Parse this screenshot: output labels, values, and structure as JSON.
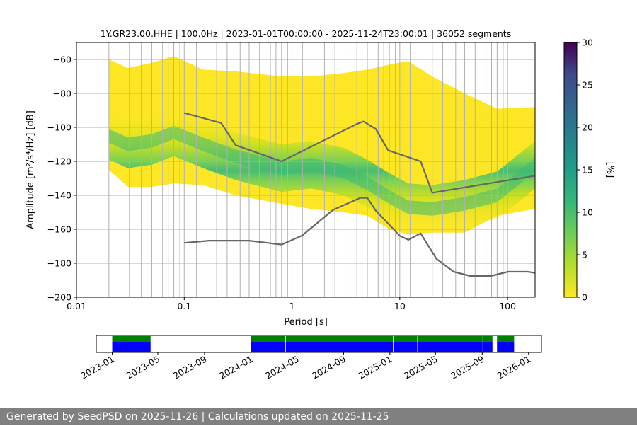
{
  "footer_text": "Generated by SeedPSD on 2025-11-26 | Calculations updated on 2025-11-25",
  "chart_data": [
    {
      "type": "heatmap",
      "title": "1Y.GR23.00.HHE | 100.0Hz | 2023-01-01T00:00:00 - 2025-11-24T23:00:01 | 36052 segments",
      "xlabel": "Period [s]",
      "ylabel": "Amplitude [m²/s⁴/Hz] [dB]",
      "x_scale": "log",
      "xlim": [
        0.01,
        180
      ],
      "ylim": [
        -200,
        -50
      ],
      "x_ticks": [
        0.01,
        0.1,
        1,
        10,
        100
      ],
      "x_tick_labels": [
        "0.01",
        "0.1",
        "1",
        "10",
        "100"
      ],
      "y_ticks": [
        -200,
        -180,
        -160,
        -140,
        -120,
        -100,
        -80,
        -60
      ],
      "y_tick_labels": [
        "−200",
        "−180",
        "−160",
        "−140",
        "−120",
        "−100",
        "−80",
        "−60"
      ],
      "grid": true,
      "colormap": "viridis",
      "colorbar": {
        "label": "[%]",
        "range": [
          0,
          30
        ],
        "ticks": [
          0,
          5,
          10,
          15,
          20,
          25,
          30
        ],
        "tick_labels": [
          "0",
          "5",
          "10",
          "15",
          "20",
          "25",
          "30"
        ]
      },
      "density_band": {
        "period": [
          0.02,
          0.03,
          0.05,
          0.08,
          0.15,
          0.3,
          0.8,
          1.5,
          3,
          5,
          8,
          12,
          20,
          40,
          80,
          180
        ],
        "mode_db": [
          -105,
          -110,
          -108,
          -103,
          -110,
          -117,
          -124,
          -122,
          -126,
          -133,
          -141,
          -147,
          -148,
          -145,
          -140,
          -122
        ],
        "upper_db": [
          -60,
          -65,
          -62,
          -58,
          -66,
          -67,
          -70,
          -70,
          -68,
          -66,
          -63,
          -61,
          -70,
          -80,
          -89,
          -88
        ],
        "lower_db": [
          -125,
          -135,
          -135,
          -133,
          -134,
          -140,
          -145,
          -148,
          -150,
          -152,
          -160,
          -163,
          -162,
          -162,
          -152,
          -148
        ]
      },
      "series": [
        {
          "x": [
            0.1,
            0.22,
            0.3,
            0.8,
            4,
            4.6,
            6,
            7.8,
            15.6,
            20,
            180
          ],
          "y": [
            -91.5,
            -97.4,
            -110.5,
            -120,
            -98,
            -96.5,
            -101,
            -113.5,
            -120,
            -138.5,
            -128.5
          ]
        },
        {
          "x": [
            0.1,
            0.17,
            0.4,
            0.8,
            1.24,
            2.4,
            4.3,
            5,
            6,
            10,
            12,
            15.6,
            21.9,
            31.6,
            45,
            70,
            101,
            154,
            180
          ],
          "y": [
            -168,
            -166.7,
            -166.7,
            -169,
            -163.7,
            -148.6,
            -141.5,
            -141.5,
            -149.1,
            -163.8,
            -166.2,
            -162.4,
            -177.4,
            -185,
            -187.5,
            -187.5,
            -185,
            -185,
            -185.7
          ]
        }
      ],
      "vertical_lines_period": [
        0.02,
        0.031,
        0.04,
        0.05,
        0.063,
        0.071,
        0.08,
        0.091,
        0.1,
        0.13,
        0.2,
        0.25,
        0.33,
        0.4,
        0.5,
        0.63,
        0.71,
        0.8,
        0.91,
        1,
        1.25,
        2,
        2.5,
        3.3,
        4,
        5,
        6.3,
        7.1,
        8,
        9.1,
        10,
        12.5,
        20,
        25,
        33,
        40,
        50,
        63,
        71,
        80,
        91,
        100
      ]
    },
    {
      "type": "bar",
      "title": "",
      "x_tick_labels": [
        "2023-01",
        "2023-05",
        "2023-09",
        "2024-01",
        "2024-05",
        "2024-09",
        "2025-01",
        "2025-05",
        "2025-09",
        "2026-01"
      ],
      "xlim": [
        "2022-11-20",
        "2026-02-04"
      ],
      "coverage": [
        {
          "start": "2023-01-01",
          "end": "2023-04-12"
        },
        {
          "start": "2024-01-01",
          "end": "2025-09-28"
        },
        {
          "start": "2025-10-10",
          "end": "2025-11-24"
        }
      ],
      "gaps": [
        "2023-04-15",
        "2024-04-01",
        "2025-01-10",
        "2025-03-15",
        "2025-09-03"
      ],
      "colors": {
        "data": "#0000ff",
        "processed": "#008000"
      }
    }
  ]
}
